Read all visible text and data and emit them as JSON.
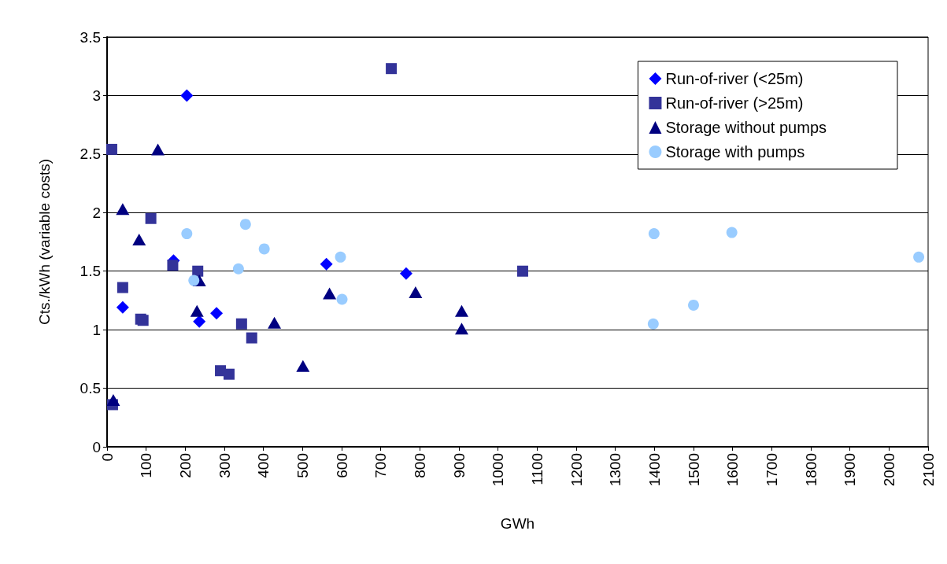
{
  "chart_data": {
    "type": "scatter",
    "xlabel": "GWh",
    "ylabel": "Cts./kWh (variable costs)",
    "xlim": [
      0,
      2100
    ],
    "xticks": [
      0,
      100,
      200,
      300,
      400,
      500,
      600,
      700,
      800,
      900,
      1000,
      1100,
      1200,
      1300,
      1400,
      1500,
      1600,
      1700,
      1800,
      1900,
      2000,
      2100
    ],
    "ylim": [
      0,
      3.5
    ],
    "yticks": [
      0,
      0.5,
      1,
      1.5,
      2,
      2.5,
      3,
      3.5
    ],
    "grid": "y",
    "legend": "top right",
    "series": [
      {
        "name": "Run-of-river (<25m)",
        "color": "#0000ff",
        "marker": "diamond",
        "x": [
          204,
          170,
          40,
          236,
          280,
          561,
          765
        ],
        "values": [
          3.0,
          1.59,
          1.19,
          1.07,
          1.14,
          1.56,
          1.48
        ]
      },
      {
        "name": "Run-of-river (>25m)",
        "color": "#333399",
        "marker": "square",
        "x": [
          12,
          40,
          112,
          168,
          232,
          86,
          92,
          14,
          290,
          312,
          344,
          370,
          727,
          1063
        ],
        "values": [
          2.54,
          1.36,
          1.95,
          1.55,
          1.5,
          1.09,
          1.08,
          0.36,
          0.65,
          0.62,
          1.05,
          0.93,
          3.23,
          1.5
        ]
      },
      {
        "name": "Storage without pumps",
        "color": "#000080",
        "marker": "triangle",
        "x": [
          130,
          40,
          82,
          16,
          230,
          236,
          428,
          501,
          569,
          789,
          907,
          907
        ],
        "values": [
          2.54,
          2.03,
          1.77,
          0.4,
          1.16,
          1.42,
          1.06,
          0.69,
          1.31,
          1.32,
          1.16,
          1.01
        ]
      },
      {
        "name": "Storage with pumps",
        "color": "#99ccff",
        "marker": "circle",
        "x": [
          204,
          222,
          354,
          336,
          402,
          597,
          601,
          1399,
          1397,
          1500,
          1598,
          2076
        ],
        "values": [
          1.82,
          1.42,
          1.9,
          1.52,
          1.69,
          1.62,
          1.26,
          1.82,
          1.05,
          1.21,
          1.83,
          1.62
        ]
      }
    ]
  }
}
